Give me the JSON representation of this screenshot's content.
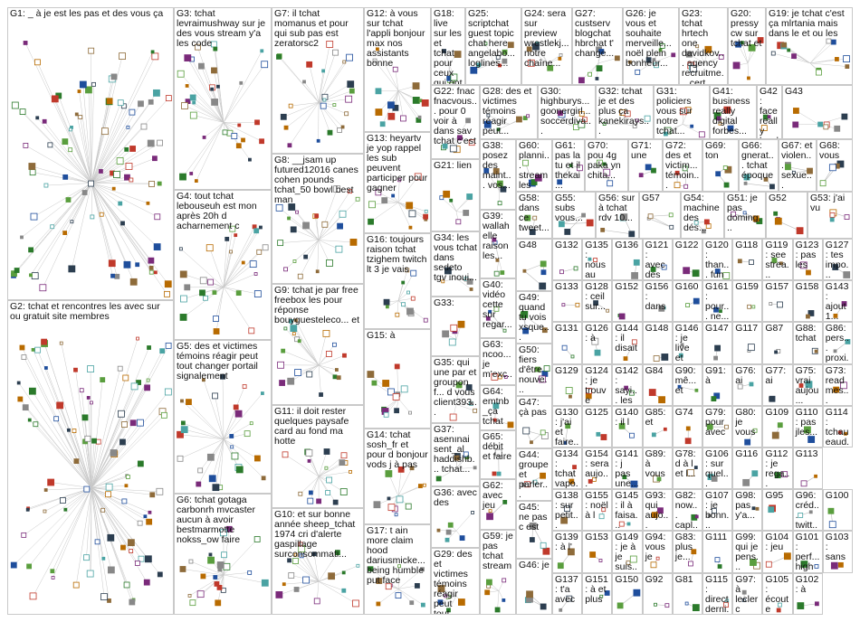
{
  "groups": [
    {
      "id": "G1",
      "label": "G1: _ à je est les pas et des vous ça"
    },
    {
      "id": "G2",
      "label": "G2: tchat et rencontres les avec sur ou gratuit site membres"
    },
    {
      "id": "G3",
      "label": "G3: tchat levraimushway sur je des vous stream y'a les code"
    },
    {
      "id": "G4",
      "label": "G4: tout tchat lebouseuh est mon après 20h d acharnement c"
    },
    {
      "id": "G5",
      "label": "G5: des et victimes témoins réagir peut tout changer portail signalement"
    },
    {
      "id": "G6",
      "label": "G6: tchat gotaga carbonrh mvcaster aucun à avoir bestmarmotte nokss_ow faire"
    },
    {
      "id": "G7",
      "label": "G7: il tchat momanus et pour qui sub pas est zeratorsc2"
    },
    {
      "id": "G8",
      "label": "G8: __jsam up futured12016 canes cohen pounds tchat_50 bowl best man"
    },
    {
      "id": "G9",
      "label": "G9: tchat je par free freebox les pour réponse bouyguesteleco... et"
    },
    {
      "id": "G10",
      "label": "G10: et sur bonne année sheep_tchat 1974 cri d'alerte gaspillage surconsommati..."
    },
    {
      "id": "G11",
      "label": "G11: il doit rester quelques paysafe card au fond ma hotte"
    },
    {
      "id": "G12",
      "label": "G12: à vous sur tchat l'appli bonjour max nos assistants bonne"
    },
    {
      "id": "G13",
      "label": "G13: heyartv je yop rappel les sub peuvent participer pour gagner"
    },
    {
      "id": "G14",
      "label": "G14: tchat sosh_fr et pour d bonjour vods j à pas"
    },
    {
      "id": "G15",
      "label": "G15: à"
    },
    {
      "id": "G16",
      "label": "G16: toujours raison tchat tzighem twitch lt 3 je vais"
    },
    {
      "id": "G17",
      "label": "G17: t ain more claim hood dariusmicke... being humble put face"
    },
    {
      "id": "G18",
      "label": "G18: live sur les et tchat pour ceux qui ont raté"
    },
    {
      "id": "G19",
      "label": "G19: je tchat c'est ça mlrtania mais dans le et ou les"
    },
    {
      "id": "G20",
      "label": "G20: pressycw sur tchat et"
    },
    {
      "id": "G21",
      "label": "G21: lien"
    },
    {
      "id": "G22",
      "label": "G22: fnac fnacvous... pour 0 voir à dans sav tchat c'est"
    },
    {
      "id": "G23",
      "label": "G23: tchat hrtech one davidkov... agency recruitme... cert..."
    },
    {
      "id": "G24",
      "label": "G24: sera sur preview wrestlekj... notre chaîne..."
    },
    {
      "id": "G25",
      "label": "G25: scriptchat guest topic chat here angelabo... loglines..."
    },
    {
      "id": "G26",
      "label": "G26: je vous et souhaite merveille... noël plein bonheur..."
    },
    {
      "id": "G27",
      "label": "G27: custserv blogchat hbrchat t' change..."
    },
    {
      "id": "G28",
      "label": "G28: des et victimes témoins réagir peut..."
    },
    {
      "id": "G29",
      "label": "G29: des et victimes témoins réagir peut tout..."
    },
    {
      "id": "G30",
      "label": "G30: highburys... goonergirl... soccerdiva..."
    },
    {
      "id": "G31",
      "label": "G31: policiers vous sur notre tchat..."
    },
    {
      "id": "G32",
      "label": "G32: tchat je et des plus ça kanekirays..."
    },
    {
      "id": "G33",
      "label": "G33:"
    },
    {
      "id": "G34",
      "label": "G34: les vous tchat dans sedeto tgv inoui..."
    },
    {
      "id": "G35",
      "label": "G35: qui une par et groupon f... d vous client393..."
    },
    {
      "id": "G36",
      "label": "G36: avec des"
    },
    {
      "id": "G37",
      "label": "G37: asenınai sent_al haddishb... tchat..."
    },
    {
      "id": "G38",
      "label": "G38: posez des maint... vos..."
    },
    {
      "id": "G39",
      "label": "G39: wallah elle raison les..."
    },
    {
      "id": "G40",
      "label": "G40: vidéo cette sur regar..."
    },
    {
      "id": "G41",
      "label": "G41: business really digital forbes..."
    },
    {
      "id": "G42",
      "label": "G42: face really hard times..."
    },
    {
      "id": "G43",
      "label": "G43"
    },
    {
      "id": "G44",
      "label": "G44: groupe et parler..."
    },
    {
      "id": "G45",
      "label": "G45: ne pas c est"
    },
    {
      "id": "G46",
      "label": "G46: je"
    },
    {
      "id": "G47",
      "label": "G47: çà pas"
    },
    {
      "id": "G48",
      "label": "G48"
    },
    {
      "id": "G49",
      "label": "G49: quand tu vois xsque..."
    },
    {
      "id": "G50",
      "label": "G50: fiers d'être nouve..."
    },
    {
      "id": "G51",
      "label": "G51: je pas doming..."
    },
    {
      "id": "G52",
      "label": "G52"
    },
    {
      "id": "G53",
      "label": "G53: j'ai vu"
    },
    {
      "id": "G54",
      "label": "G54: machine des dés..."
    },
    {
      "id": "G55",
      "label": "G55: subs vous..."
    },
    {
      "id": "G56",
      "label": "G56: sur à tchat rdv 10..."
    },
    {
      "id": "G57",
      "label": "G57"
    },
    {
      "id": "G58",
      "label": "G58: dans ce tweet..."
    },
    {
      "id": "G59",
      "label": "G59: je pas tchat stream"
    },
    {
      "id": "G60",
      "label": "G60: planni... stream les les..."
    },
    {
      "id": "G61",
      "label": "G61: pas la tu et il thekai..."
    },
    {
      "id": "G62",
      "label": "G62: avec jeu"
    },
    {
      "id": "G63",
      "label": "G63: ncoo... je m'exc..."
    },
    {
      "id": "G64",
      "label": "G64: emtnb_ça tchat"
    },
    {
      "id": "G65",
      "label": "G65: débit et faire"
    },
    {
      "id": "G66",
      "label": "G66: gnerat... tchat époque"
    },
    {
      "id": "G67",
      "label": "G67: et violen... sexue... sexist..."
    },
    {
      "id": "G68",
      "label": "G68: vous"
    },
    {
      "id": "G69",
      "label": "G69: ton"
    },
    {
      "id": "G70",
      "label": "G70: pou 4g paka yn chita..."
    },
    {
      "id": "G71",
      "label": "G71: une"
    },
    {
      "id": "G72",
      "label": "G72: des et victim... témoin..."
    },
    {
      "id": "G73",
      "label": "G73: read mes..."
    },
    {
      "id": "G74",
      "label": "G74"
    },
    {
      "id": "G75",
      "label": "G75: vrai aujou..."
    },
    {
      "id": "G76",
      "label": "G76: ai"
    },
    {
      "id": "G77",
      "label": "G77: ai"
    },
    {
      "id": "G78",
      "label": "G78: d à l et l..."
    },
    {
      "id": "G79",
      "label": "G79: pour avec"
    },
    {
      "id": "G80",
      "label": "G80: je vous"
    },
    {
      "id": "G81",
      "label": "G81"
    },
    {
      "id": "G82",
      "label": "G82: now... capl..."
    },
    {
      "id": "G83",
      "label": "G83: plus je..."
    },
    {
      "id": "G84",
      "label": "G84"
    },
    {
      "id": "G85",
      "label": "G85: et"
    },
    {
      "id": "G86",
      "label": "G86: pers... proxi..."
    },
    {
      "id": "G87",
      "label": "G87"
    },
    {
      "id": "G88",
      "label": "G88: tchat"
    },
    {
      "id": "G89",
      "label": "G89: à vous"
    },
    {
      "id": "G90",
      "label": "G90: mê... et"
    },
    {
      "id": "G91",
      "label": "G91: à"
    },
    {
      "id": "G92",
      "label": "G92"
    },
    {
      "id": "G93",
      "label": "G93: qui aujo..."
    },
    {
      "id": "G94",
      "label": "G94: vous je"
    },
    {
      "id": "G95",
      "label": "G95"
    },
    {
      "id": "G96",
      "label": "G96: créd... twitt..."
    },
    {
      "id": "G97",
      "label": "G97: à leclerc"
    },
    {
      "id": "G98",
      "label": "G98: pas y'a..."
    },
    {
      "id": "G99",
      "label": "G99: qui je pens..."
    },
    {
      "id": "G100",
      "label": "G100"
    },
    {
      "id": "G101",
      "label": "G101: perf... high cult..."
    },
    {
      "id": "G102",
      "label": "G102: à"
    },
    {
      "id": "G103",
      "label": "G103: sans"
    },
    {
      "id": "G104",
      "label": "G104: jeu"
    },
    {
      "id": "G105",
      "label": "G105: écoute qui..."
    },
    {
      "id": "G106",
      "label": "G106: sur quel..."
    },
    {
      "id": "G107",
      "label": "G107: je bonn..."
    },
    {
      "id": "G108",
      "label": "G108: d à l'..."
    },
    {
      "id": "G109",
      "label": "G109"
    },
    {
      "id": "G110",
      "label": "G110: pas jles..."
    },
    {
      "id": "G111",
      "label": "G111"
    },
    {
      "id": "G112",
      "label": "G112: je rega..."
    },
    {
      "id": "G113",
      "label": "G113"
    },
    {
      "id": "G114",
      "label": "G114: tchau eaud..."
    },
    {
      "id": "G115",
      "label": "G115: direct derni..."
    },
    {
      "id": "G116",
      "label": "G116"
    },
    {
      "id": "G117",
      "label": "G117"
    },
    {
      "id": "G118",
      "label": "G118"
    },
    {
      "id": "G119",
      "label": "G119: see strea..."
    },
    {
      "id": "G120",
      "label": "G120: than... fun"
    },
    {
      "id": "G121",
      "label": "G121: avec des"
    },
    {
      "id": "G122",
      "label": "G122"
    },
    {
      "id": "G123",
      "label": "G123: pas les"
    },
    {
      "id": "G124",
      "label": "G124: je trouve"
    },
    {
      "id": "G125",
      "label": "G125"
    },
    {
      "id": "G126",
      "label": "G126: à"
    },
    {
      "id": "G127",
      "label": "G127: tes impo..."
    },
    {
      "id": "G128",
      "label": "G128: ceil sur..."
    },
    {
      "id": "G129",
      "label": "G129"
    },
    {
      "id": "G130",
      "label": "G130: j'ai et faire..."
    },
    {
      "id": "G131",
      "label": "G131"
    },
    {
      "id": "G132",
      "label": "G132"
    },
    {
      "id": "G133",
      "label": "G133"
    },
    {
      "id": "G134",
      "label": "G134: tchat vapo..."
    },
    {
      "id": "G135",
      "label": "G135: nous au maint..."
    },
    {
      "id": "G136",
      "label": "G136"
    },
    {
      "id": "G137",
      "label": "G137: t'a avec"
    },
    {
      "id": "G138",
      "label": "G138: sur petit..."
    },
    {
      "id": "G139",
      "label": "G139: à l'"
    },
    {
      "id": "G140",
      "label": "G140: il l"
    },
    {
      "id": "G141",
      "label": "G141: j pas une..."
    },
    {
      "id": "G142",
      "label": "G142: sayi... les"
    },
    {
      "id": "G143",
      "label": "G143: ajout 1..."
    },
    {
      "id": "G144",
      "label": "G144: il disait"
    },
    {
      "id": "G145",
      "label": "G145: il à faisa..."
    },
    {
      "id": "G146",
      "label": "G146: je live et"
    },
    {
      "id": "G147",
      "label": "G147"
    },
    {
      "id": "G148",
      "label": "G148"
    },
    {
      "id": "G149",
      "label": "G149: je à je suis..."
    },
    {
      "id": "G150",
      "label": "G150"
    },
    {
      "id": "G151",
      "label": "G151: à et plus"
    },
    {
      "id": "G152",
      "label": "G152"
    },
    {
      "id": "G153",
      "label": "G153"
    },
    {
      "id": "G154",
      "label": "G154: sera aujo..."
    },
    {
      "id": "G155",
      "label": "G155: noël à l"
    },
    {
      "id": "G156",
      "label": "G156: dans"
    },
    {
      "id": "G157",
      "label": "G157"
    },
    {
      "id": "G158",
      "label": "G158"
    },
    {
      "id": "G159",
      "label": "G159"
    },
    {
      "id": "G160",
      "label": "G160"
    },
    {
      "id": "G161",
      "label": "G161: pour... ne... les..."
    }
  ]
}
